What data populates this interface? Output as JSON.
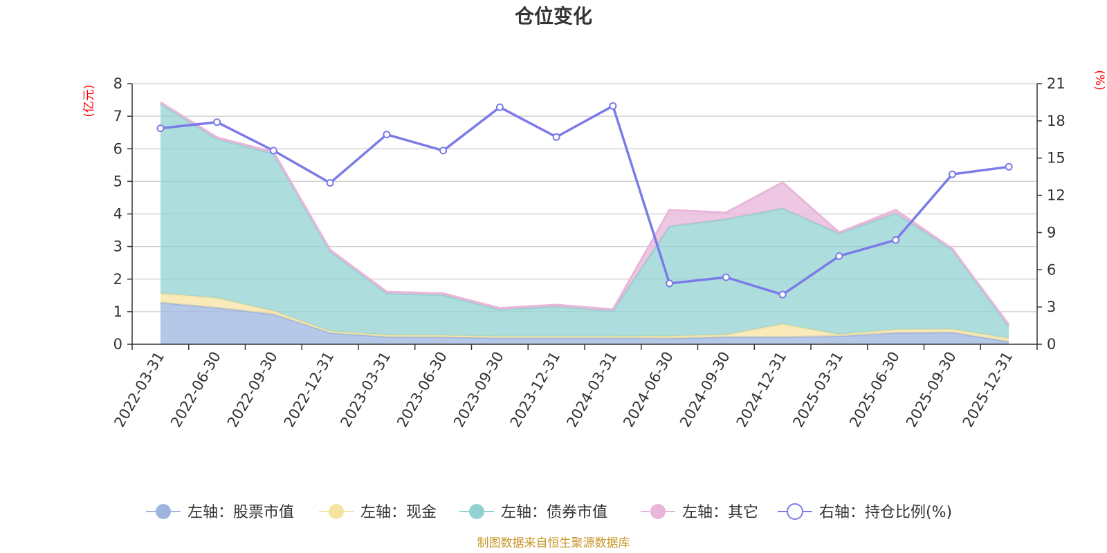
{
  "chart_data": {
    "type": "area",
    "title": "仓位变化",
    "source": "制图数据来自恒生聚源数据库",
    "categories": [
      "2022-03-31",
      "2022-06-30",
      "2022-09-30",
      "2022-12-31",
      "2023-03-31",
      "2023-06-30",
      "2023-09-30",
      "2023-12-31",
      "2024-03-31",
      "2024-06-30",
      "2024-09-30",
      "2024-12-31",
      "2025-03-31",
      "2025-06-30",
      "2025-09-30",
      "2025-12-31"
    ],
    "left_axis": {
      "unit": "(亿元)",
      "ylim": [
        0,
        8
      ],
      "ticks": [
        "0",
        "1",
        "2",
        "3",
        "4",
        "5",
        "6",
        "7",
        "8"
      ]
    },
    "right_axis": {
      "unit": "(%)",
      "ylim": [
        0,
        21
      ],
      "ticks": [
        "0",
        "3",
        "6",
        "9",
        "12",
        "15",
        "18",
        "21"
      ]
    },
    "grid": true,
    "legend_position": "bottom",
    "series": [
      {
        "name": "左轴：股票市值",
        "axis": "left",
        "stacked": true,
        "color": "#9db5e0",
        "values": [
          1.28,
          1.12,
          0.92,
          0.35,
          0.23,
          0.22,
          0.19,
          0.19,
          0.19,
          0.18,
          0.22,
          0.22,
          0.25,
          0.35,
          0.36,
          0.08
        ]
      },
      {
        "name": "左轴：现金",
        "axis": "left",
        "stacked": true,
        "color": "#f7e3a1",
        "values": [
          0.28,
          0.3,
          0.1,
          0.05,
          0.05,
          0.05,
          0.05,
          0.05,
          0.05,
          0.07,
          0.07,
          0.4,
          0.05,
          0.1,
          0.1,
          0.1
        ]
      },
      {
        "name": "左轴：债券市值",
        "axis": "left",
        "stacked": true,
        "color": "#93d2d1",
        "values": [
          5.82,
          4.88,
          4.83,
          2.45,
          1.28,
          1.24,
          0.82,
          0.92,
          0.78,
          3.37,
          3.55,
          3.55,
          3.1,
          3.57,
          2.44,
          0.37
        ]
      },
      {
        "name": "左轴：其它",
        "axis": "left",
        "stacked": true,
        "color": "#e8b6d9",
        "values": [
          0.05,
          0.05,
          0.05,
          0.05,
          0.05,
          0.05,
          0.05,
          0.05,
          0.05,
          0.5,
          0.2,
          0.8,
          0.03,
          0.1,
          0.03,
          0.05
        ]
      },
      {
        "name": "右轴：持仓比例(%)",
        "axis": "right",
        "type": "line",
        "color": "#7b7be8",
        "values": [
          17.4,
          17.9,
          15.6,
          13.0,
          16.9,
          15.6,
          19.1,
          16.7,
          19.2,
          4.9,
          5.4,
          4.0,
          7.1,
          8.4,
          13.7,
          14.3
        ]
      }
    ]
  }
}
